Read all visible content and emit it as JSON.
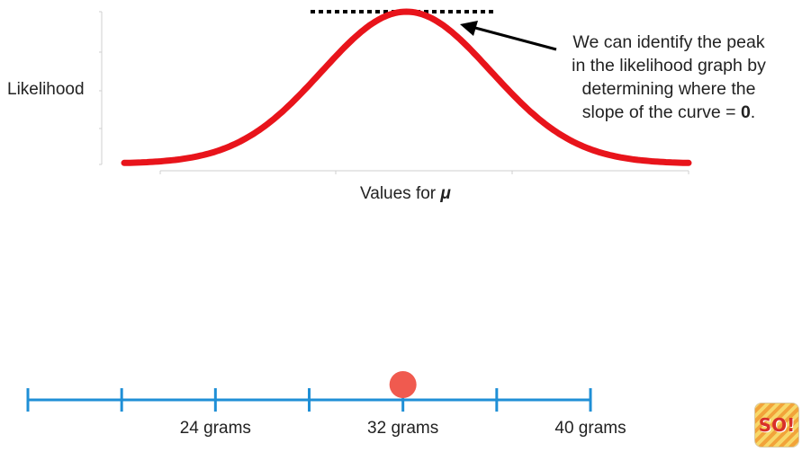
{
  "chart_data": [
    {
      "type": "line",
      "ylabel": "Likelihood",
      "xlabel_text": "Values for ",
      "xlabel_symbol": "μ",
      "series": [
        {
          "color": "#e8141b",
          "shape": "normal-curve",
          "peak_x": 0.5,
          "spread": 0.15
        }
      ],
      "annotation": {
        "text_line1": "We can identify the peak",
        "text_line2": "in the likelihood graph by",
        "text_line3": "determining where the",
        "text_line4_prefix": "slope of the curve = ",
        "text_line4_bold": "0",
        "text_line4_suffix": ".",
        "peak_tangent_style": "dotted",
        "arrow_color": "#000000"
      },
      "grid": false
    },
    {
      "type": "number-line",
      "line_color": "#1f8fd6",
      "point_color": "#f05a4f",
      "point_value": 32,
      "tick_values": [
        16,
        20,
        24,
        28,
        32,
        36,
        40
      ],
      "labels": [
        {
          "value": 24,
          "text": "24 grams"
        },
        {
          "value": 32,
          "text": "32 grams"
        },
        {
          "value": 40,
          "text": "40 grams"
        }
      ]
    }
  ],
  "logo": {
    "text": "SO!"
  }
}
